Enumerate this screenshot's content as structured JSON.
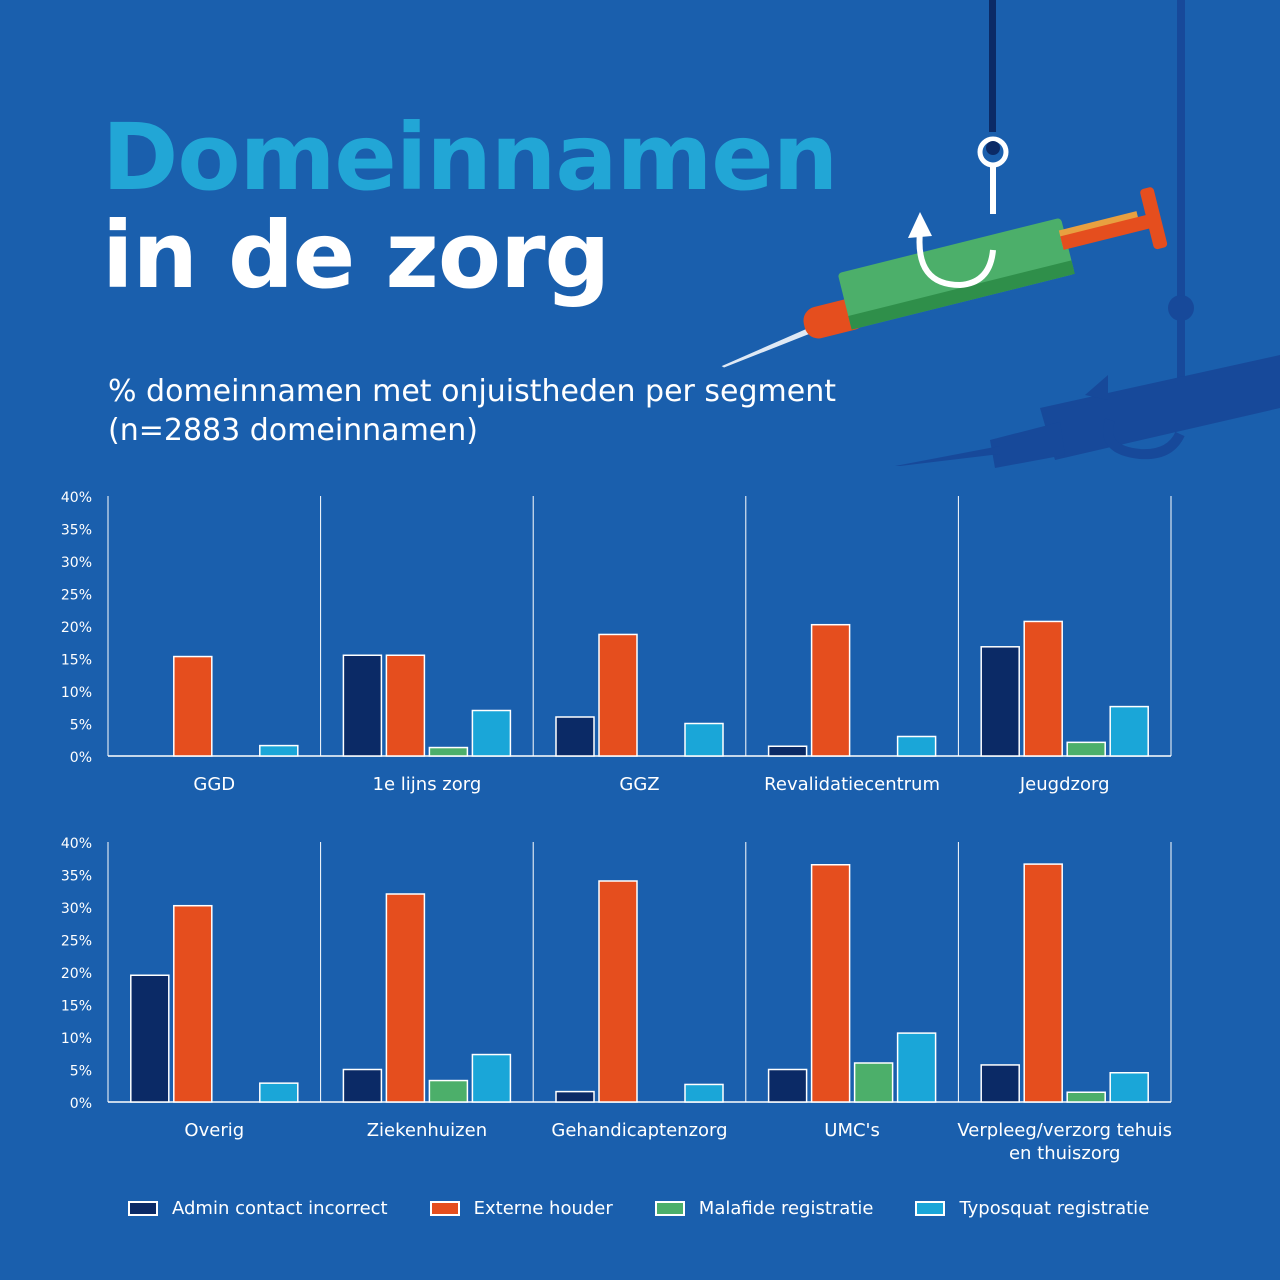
{
  "title": {
    "line1": "Domeinnamen",
    "line2": "in de zorg"
  },
  "subtitle": {
    "line1": "% domeinnamen met onjuistheden per segment",
    "line2": "(n=2883 domeinnamen)"
  },
  "colors": {
    "background": "#1a5fad",
    "title_accent": "#22a6d6",
    "admin": "#0b2a66",
    "externe": "#e54e1e",
    "malafide": "#4caf6a",
    "typosquat": "#1aa6d8"
  },
  "icons": [
    "syringe-on-fishhook-icon",
    "syringe-shadow-icon"
  ],
  "chart_data": [
    {
      "type": "bar",
      "categories": [
        "GGD",
        "1e lijns zorg",
        "GGZ",
        "Revalidatiecentrum",
        "Jeugdzorg"
      ],
      "yticks": [
        "0%",
        "5%",
        "10%",
        "15%",
        "20%",
        "25%",
        "30%",
        "35%",
        "40%"
      ],
      "ylim": [
        0,
        40
      ],
      "series": [
        {
          "name": "Admin contact incorrect",
          "color": "#0b2a66",
          "values": [
            0,
            15.5,
            6,
            1.5,
            16.8
          ]
        },
        {
          "name": "Externe houder",
          "color": "#e54e1e",
          "values": [
            15.3,
            15.5,
            18.7,
            20.2,
            20.7
          ]
        },
        {
          "name": "Malafide registratie",
          "color": "#4caf6a",
          "values": [
            0,
            1.3,
            0,
            0,
            2.1
          ]
        },
        {
          "name": "Typosquat registratie",
          "color": "#1aa6d8",
          "values": [
            1.6,
            7,
            5,
            3,
            7.6
          ]
        }
      ]
    },
    {
      "type": "bar",
      "categories": [
        "Overig",
        "Ziekenhuizen",
        "Gehandicaptenzorg",
        "UMC's",
        "Verpleeg/verzorg tehuis\nen thuiszorg"
      ],
      "yticks": [
        "0%",
        "5%",
        "10%",
        "15%",
        "20%",
        "25%",
        "30%",
        "35%",
        "40%"
      ],
      "ylim": [
        0,
        40
      ],
      "series": [
        {
          "name": "Admin contact incorrect",
          "color": "#0b2a66",
          "values": [
            19.5,
            5,
            1.6,
            5,
            5.7
          ]
        },
        {
          "name": "Externe houder",
          "color": "#e54e1e",
          "values": [
            30.2,
            32,
            34,
            36.5,
            36.6
          ]
        },
        {
          "name": "Malafide registratie",
          "color": "#4caf6a",
          "values": [
            0,
            3.3,
            0,
            6,
            1.5
          ]
        },
        {
          "name": "Typosquat registratie",
          "color": "#1aa6d8",
          "values": [
            2.9,
            7.3,
            2.7,
            10.6,
            4.5
          ]
        }
      ]
    }
  ],
  "legend": [
    {
      "label": "Admin contact incorrect",
      "color": "#0b2a66"
    },
    {
      "label": "Externe houder",
      "color": "#e54e1e"
    },
    {
      "label": "Malafide registratie",
      "color": "#4caf6a"
    },
    {
      "label": "Typosquat registratie",
      "color": "#1aa6d8"
    }
  ]
}
